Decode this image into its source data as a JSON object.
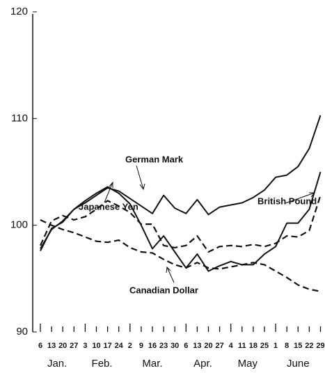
{
  "chart_data": {
    "type": "line",
    "categories": [
      "6",
      "13",
      "20",
      "27",
      "3",
      "10",
      "17",
      "24",
      "2",
      "9",
      "16",
      "23",
      "30",
      "6",
      "13",
      "20",
      "27",
      "4",
      "11",
      "18",
      "25",
      "1",
      "8",
      "15",
      "22",
      "29"
    ],
    "months": [
      "Jan.",
      "Feb.",
      "Mar.",
      "Apr.",
      "May",
      "June"
    ],
    "ylim": [
      90,
      120
    ],
    "yticks": [
      90,
      100,
      110,
      120
    ],
    "series": [
      {
        "name": "German Mark",
        "color": "#111111",
        "dashed": false,
        "values": [
          97.8,
          99.6,
          100.4,
          101.5,
          102.1,
          102.8,
          103.5,
          103.2,
          102.5,
          101.8,
          101.1,
          102.8,
          101.6,
          101.1,
          102.4,
          101.0,
          101.7,
          101.9,
          102.1,
          102.6,
          103.3,
          104.5,
          104.7,
          105.5,
          107.2,
          110.3
        ]
      },
      {
        "name": "British Pound",
        "color": "#111111",
        "dashed": false,
        "values": [
          97.6,
          99.7,
          100.3,
          101.5,
          102.3,
          103.0,
          103.6,
          103.0,
          102.0,
          100.0,
          97.8,
          99.0,
          97.5,
          96.0,
          97.3,
          95.7,
          96.2,
          96.6,
          96.3,
          96.3,
          97.3,
          98.0,
          100.2,
          100.2,
          101.5,
          105.0
        ]
      },
      {
        "name": "Japanese Yen",
        "color": "#111111",
        "dashed": true,
        "values": [
          98.1,
          100.4,
          100.9,
          100.5,
          100.8,
          101.5,
          102.3,
          101.8,
          101.2,
          100.1,
          100.1,
          98.1,
          97.9,
          98.1,
          99.0,
          97.5,
          98.0,
          98.1,
          98.0,
          98.2,
          98.0,
          98.3,
          99.0,
          98.9,
          99.5,
          102.8
        ]
      },
      {
        "name": "Canadian Dollar",
        "color": "#111111",
        "dashed": true,
        "values": [
          100.5,
          100.0,
          99.6,
          99.3,
          98.9,
          98.5,
          98.4,
          98.6,
          97.9,
          97.5,
          97.4,
          96.8,
          96.3,
          96.0,
          96.5,
          96.0,
          95.9,
          96.1,
          96.3,
          96.5,
          96.3,
          95.7,
          95.1,
          94.4,
          94.0,
          93.8
        ]
      }
    ]
  }
}
